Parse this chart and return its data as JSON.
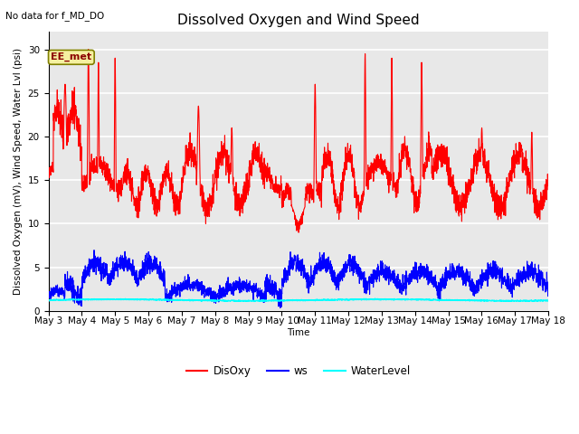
{
  "title": "Dissolved Oxygen and Wind Speed",
  "ylabel": "Dissolved Oxygen (mV), Wind Speed, Water Lvl (psi)",
  "xlabel": "Time",
  "top_left_text": "No data for f_MD_DO",
  "annotation_text": "EE_met",
  "ylim": [
    0,
    32
  ],
  "yticks": [
    0,
    5,
    10,
    15,
    20,
    25,
    30
  ],
  "legend_labels": [
    "DisOxy",
    "ws",
    "WaterLevel"
  ],
  "bg_color": "#e8e8e8",
  "grid_color": "white",
  "title_fontsize": 11,
  "label_fontsize": 7.5,
  "tick_fontsize": 7.5
}
